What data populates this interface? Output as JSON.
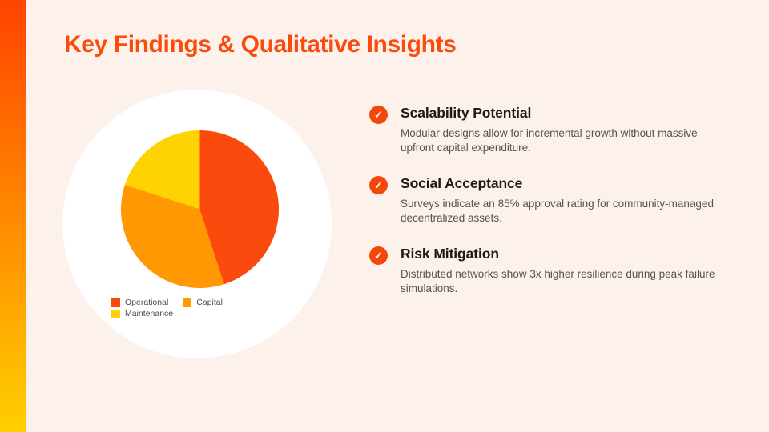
{
  "slide": {
    "title": "Key Findings & Qualitative Insights",
    "title_color": "#FA4B0D",
    "background_color": "#FCF1EB",
    "accent_bar": {
      "top_color": "#FF4300",
      "bottom_color": "#FFCF00"
    }
  },
  "chart_data": {
    "type": "pie",
    "labels": [
      "Operational",
      "Capital",
      "Maintenance"
    ],
    "values": [
      45,
      35,
      20
    ],
    "colors": [
      "#FA4A0E",
      "#FF9803",
      "#FFD303"
    ],
    "title": "",
    "legend_position": "bottom"
  },
  "icons": {
    "check": "✓",
    "check_circle_color": "#F2480C"
  },
  "insights": [
    {
      "heading": "Scalability Potential",
      "description": "Modular designs allow for incremental growth without massive upfront capital expenditure."
    },
    {
      "heading": "Social Acceptance",
      "description": "Surveys indicate an 85% approval rating for community-managed decentralized assets."
    },
    {
      "heading": "Risk Mitigation",
      "description": "Distributed networks show 3x higher resilience during peak failure simulations."
    }
  ]
}
